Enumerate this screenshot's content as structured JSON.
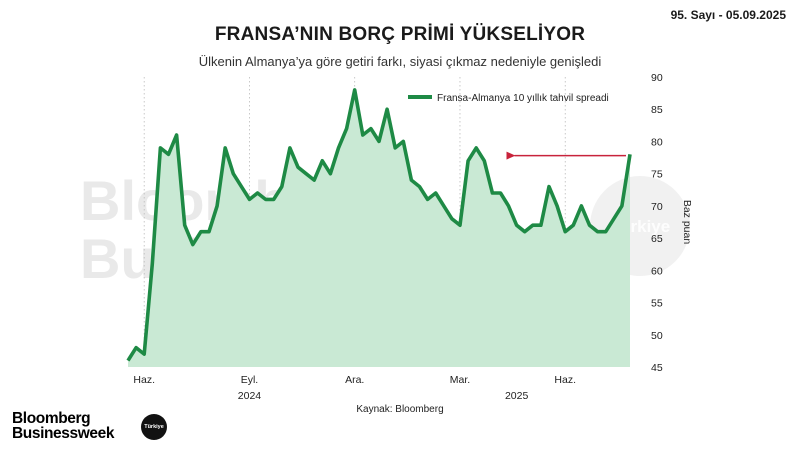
{
  "header": {
    "issue": "95. Sayı - 05.09.2025",
    "title": "FRANSA’NIN BORÇ PRİMİ YÜKSELİYOR",
    "subtitle": "Ülkenin Almanya’ya göre getiri farkı, siyasi çıkmaz nedeniyle genişledi"
  },
  "footer": {
    "source": "Kaynak: Bloomberg",
    "logo_line1": "Bloomberg",
    "logo_line2": "Businessweek",
    "logo_badge": "Türkiye"
  },
  "watermark": {
    "line1": "Bloomberg",
    "line2": "Businessweek",
    "badge": "Türkiye"
  },
  "colors": {
    "line": "#1e8a45",
    "area": "#c9e9d4",
    "arrow": "#c8233b",
    "grid": "#bbbbbb"
  },
  "chart_data": {
    "type": "area",
    "x_unit": "weeks",
    "y_min": 45,
    "y_max": 90,
    "y_ticks": [
      45,
      50,
      55,
      60,
      65,
      70,
      75,
      80,
      85,
      90
    ],
    "ylabel": "Baz puan",
    "y_axis_position": "right",
    "grid": "vertical dashed at month ticks",
    "x_month_ticks": [
      {
        "label": "Haz.",
        "week": 2
      },
      {
        "label": "Eyl.",
        "week": 15
      },
      {
        "label": "Ara.",
        "week": 28
      },
      {
        "label": "Mar.",
        "week": 41
      },
      {
        "label": "Haz.",
        "week": 54
      }
    ],
    "x_year_labels": [
      {
        "label": "2024",
        "week": 15
      },
      {
        "label": "2025",
        "week": 48
      }
    ],
    "legend": {
      "position": "top-right"
    },
    "series": [
      {
        "name": "Fransa-Almanya 10 yıllık tahvil spreadi",
        "values": [
          46,
          48,
          47,
          61,
          79,
          78,
          81,
          67,
          64,
          66,
          66,
          70,
          79,
          75,
          73,
          71,
          72,
          71,
          71,
          73,
          79,
          76,
          75,
          74,
          77,
          75,
          79,
          82,
          88,
          81,
          82,
          80,
          85,
          79,
          80,
          74,
          73,
          71,
          72,
          70,
          68,
          67,
          77,
          79,
          77,
          72,
          72,
          70,
          67,
          66,
          67,
          67,
          73,
          70,
          66,
          67,
          70,
          67,
          66,
          66,
          68,
          70,
          78
        ]
      }
    ],
    "annotations": [
      {
        "type": "arrow",
        "direction": "left",
        "from_week": 62,
        "to_week": 46,
        "y": 77.8
      }
    ]
  }
}
